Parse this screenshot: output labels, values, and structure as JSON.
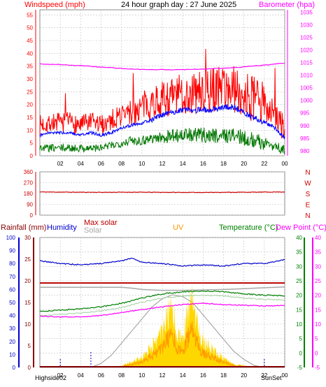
{
  "title": "24 hour graph day : 27 June 2025",
  "colors": {
    "wind": "#ff0000",
    "gust": "#ff0000",
    "avg": "#0000ff",
    "low": "#007700",
    "baro": "#ff00ff",
    "dir": "#cc0000",
    "rain": "#880000",
    "humidity": "#0000cc",
    "maxsolar": "#bb0000",
    "solar": "#a8a8a8",
    "uv": "#ffd700",
    "uvline": "#ff9900",
    "temp": "#008000",
    "dew": "#ff00ff",
    "grid": "#c0c0c0",
    "axis": "#000000",
    "frame": "#888888"
  },
  "chart_data": [
    {
      "type": "line",
      "labels": {
        "left": "Windspeed (mph)",
        "right": "Barometer (hpa)"
      },
      "x_ticks": [
        "02",
        "04",
        "06",
        "08",
        "10",
        "12",
        "14",
        "16",
        "18",
        "20",
        "22",
        "00"
      ],
      "y_left_ticks": [
        "0",
        "5",
        "10",
        "15",
        "20",
        "25",
        "30",
        "35",
        "40",
        "45",
        "50",
        "55"
      ],
      "y_left_range": [
        0,
        57
      ],
      "y_right_ticks": [
        "980",
        "985",
        "990",
        "995",
        "1000",
        "1005",
        "1010",
        "1015",
        "1020",
        "1025",
        "1030",
        "1035"
      ],
      "y_right_range": [
        978,
        1036
      ],
      "x_range_hours": [
        0,
        24
      ],
      "grid": true,
      "series": [
        {
          "key": "gust",
          "x": [
            0,
            1,
            2,
            3,
            4,
            5,
            6,
            7,
            8,
            9,
            10,
            11,
            12,
            13,
            14,
            15,
            16,
            17,
            18,
            19,
            20,
            21,
            22,
            23,
            24
          ],
          "y": [
            12,
            13,
            13,
            13,
            12,
            13,
            12,
            14,
            16,
            17,
            19,
            21,
            22,
            23,
            24,
            24,
            25,
            26,
            27,
            26,
            24,
            22,
            20,
            17,
            10
          ]
        },
        {
          "key": "avg",
          "x": [
            0,
            1,
            2,
            3,
            4,
            5,
            6,
            7,
            8,
            9,
            10,
            11,
            12,
            13,
            14,
            15,
            16,
            17,
            18,
            19,
            20,
            21,
            22,
            23,
            24
          ],
          "y": [
            8,
            9,
            9,
            9,
            8,
            9,
            8,
            9,
            11,
            12,
            13,
            14,
            16,
            17,
            18,
            18,
            18,
            18,
            19,
            19,
            17,
            15,
            13,
            11,
            7
          ]
        },
        {
          "key": "low",
          "x": [
            0,
            1,
            2,
            3,
            4,
            5,
            6,
            7,
            8,
            9,
            10,
            11,
            12,
            13,
            14,
            15,
            16,
            17,
            18,
            19,
            20,
            21,
            22,
            23,
            24
          ],
          "y": [
            3,
            3,
            3,
            3,
            3,
            3,
            3,
            4,
            5,
            6,
            6,
            7,
            7,
            8,
            8,
            8,
            8,
            8,
            8,
            8,
            7,
            6,
            5,
            4,
            2
          ]
        },
        {
          "key": "baro",
          "x": [
            0,
            2,
            4,
            6,
            8,
            10,
            12,
            14,
            16,
            18,
            20,
            22,
            24
          ],
          "y": [
            1014.5,
            1014.2,
            1013.8,
            1013.2,
            1012.7,
            1012.3,
            1012.2,
            1012.2,
            1012.4,
            1012.8,
            1013.3,
            1014.0,
            1014.8
          ]
        }
      ]
    },
    {
      "type": "line",
      "labels": {
        "right": [
          "N",
          "W",
          "S",
          "E",
          "N"
        ]
      },
      "y_left_ticks": [
        "360",
        "270",
        "180",
        "90",
        "0"
      ],
      "y_range": [
        0,
        360
      ],
      "x_range_hours": [
        0,
        24
      ],
      "grid": true,
      "series": [
        {
          "key": "dir",
          "x": [
            0,
            3,
            6,
            9,
            12,
            15,
            18,
            21,
            24
          ],
          "y": [
            193,
            191,
            190,
            191,
            190,
            189,
            190,
            191,
            193
          ]
        }
      ]
    },
    {
      "type": "line",
      "labels": {
        "rainfall": "Rainfall (mm)",
        "humidity": "Humidity",
        "maxsolar": "Max solar",
        "solar": "Solar",
        "uv": "UV",
        "temperature": "Temperature (°C)",
        "dewpoint": "Dew Point (°C)"
      },
      "x_ticks": [
        "02",
        "04",
        "06",
        "08",
        "10",
        "12",
        "14",
        "16",
        "18",
        "20",
        "22",
        "00"
      ],
      "y_humidity_ticks": [
        "0",
        "10",
        "20",
        "30",
        "40",
        "50",
        "60",
        "70",
        "80",
        "90",
        "100"
      ],
      "y_humidity_range": [
        0,
        100
      ],
      "y_rain_ticks": [
        "0",
        "5",
        "10",
        "15",
        "20",
        "25",
        "30"
      ],
      "y_rain_range": [
        0,
        30
      ],
      "y_temp_ticks": [
        "-5",
        "0",
        "5",
        "10",
        "15",
        "20",
        "25",
        "30",
        "35",
        "40"
      ],
      "y_temp_range": [
        -5,
        40
      ],
      "x_range_hours": [
        0,
        24
      ],
      "grid": true,
      "markers": {
        "highside": "Highside02",
        "sunset": "SunSet",
        "sunrise_hours": 5.0,
        "marker_hours": [
          2.0,
          22.0
        ]
      },
      "series": [
        {
          "key": "humidity",
          "x": [
            0,
            2,
            4,
            6,
            8,
            9,
            10,
            12,
            14,
            16,
            18,
            20,
            22,
            24
          ],
          "y": [
            82,
            80,
            79,
            80,
            82,
            84,
            81,
            80,
            78,
            79,
            78,
            80,
            80,
            83
          ]
        },
        {
          "key": "rain",
          "x": [
            0,
            24
          ],
          "y": [
            0.0,
            0.0
          ]
        },
        {
          "key": "maxsolar",
          "x": [
            0,
            2,
            4,
            6,
            8,
            10,
            12,
            14,
            16,
            18,
            20,
            22,
            24
          ],
          "y": [
            19.5,
            19.5,
            19.5,
            19.5,
            19.5,
            19.5,
            19.5,
            19.5,
            19.5,
            19.5,
            19.5,
            19.5,
            19.5
          ]
        },
        {
          "key": "solar_bg",
          "x": [
            0,
            2,
            4,
            6,
            8,
            9,
            10,
            12,
            14,
            16,
            18,
            20,
            22,
            24
          ],
          "y": [
            18.5,
            18.5,
            18.5,
            18.5,
            18.5,
            18.3,
            18.0,
            17.8,
            17.8,
            17.9,
            18.0,
            18.2,
            18.4,
            18.6
          ]
        },
        {
          "key": "solar_curve",
          "x": [
            5,
            6,
            7,
            8,
            9,
            10,
            11,
            12,
            13,
            14,
            15,
            16,
            17,
            18,
            19,
            20,
            21,
            22
          ],
          "y": [
            0,
            1,
            3,
            6,
            9,
            12,
            15,
            17,
            18,
            17.5,
            16,
            13,
            10,
            7,
            4,
            2,
            0.5,
            0
          ]
        },
        {
          "key": "uv",
          "x": [
            7,
            8,
            9,
            10,
            11,
            12,
            12.5,
            13,
            13.5,
            14,
            14.5,
            15,
            15.5,
            16,
            16.5,
            17,
            18,
            19,
            20,
            21
          ],
          "y": [
            0,
            0.5,
            1.5,
            3,
            6,
            10,
            14,
            17,
            9,
            8,
            15,
            18,
            11,
            7,
            6,
            5,
            2.5,
            1,
            0.5,
            0
          ]
        },
        {
          "key": "temp",
          "x": [
            0,
            2,
            4,
            6,
            8,
            10,
            11,
            12,
            14,
            16,
            18,
            20,
            22,
            24
          ],
          "y": [
            14.5,
            14.8,
            15.3,
            16.0,
            17.2,
            19.0,
            19.8,
            20.5,
            21.2,
            21.5,
            21.2,
            20.5,
            20.0,
            19.8
          ]
        },
        {
          "key": "dew",
          "x": [
            0,
            2,
            4,
            6,
            8,
            10,
            12,
            14,
            16,
            18,
            20,
            22,
            24
          ],
          "y": [
            12.8,
            12.5,
            12.5,
            13.0,
            14.0,
            15.0,
            16.0,
            16.8,
            17.2,
            16.8,
            16.5,
            16.3,
            16.5
          ]
        }
      ]
    }
  ]
}
